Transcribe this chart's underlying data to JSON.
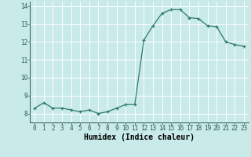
{
  "x": [
    0,
    1,
    2,
    3,
    4,
    5,
    6,
    7,
    8,
    9,
    10,
    11,
    12,
    13,
    14,
    15,
    16,
    17,
    18,
    19,
    20,
    21,
    22,
    23
  ],
  "y": [
    8.3,
    8.6,
    8.3,
    8.3,
    8.2,
    8.1,
    8.2,
    8.0,
    8.1,
    8.3,
    8.5,
    8.5,
    12.1,
    12.9,
    13.6,
    13.8,
    13.8,
    13.35,
    13.3,
    12.9,
    12.85,
    12.0,
    11.85,
    11.75
  ],
  "xlabel": "Humidex (Indice chaleur)",
  "ylim": [
    7.5,
    14.25
  ],
  "xlim": [
    -0.5,
    23.5
  ],
  "yticks": [
    8,
    9,
    10,
    11,
    12,
    13,
    14
  ],
  "xticks": [
    0,
    1,
    2,
    3,
    4,
    5,
    6,
    7,
    8,
    9,
    10,
    11,
    12,
    13,
    14,
    15,
    16,
    17,
    18,
    19,
    20,
    21,
    22,
    23
  ],
  "xtick_labels": [
    "0",
    "1",
    "2",
    "3",
    "4",
    "5",
    "6",
    "7",
    "8",
    "9",
    "10",
    "11",
    "12",
    "13",
    "14",
    "15",
    "16",
    "17",
    "18",
    "19",
    "20",
    "21",
    "22",
    "23"
  ],
  "line_color": "#2d7a6e",
  "marker": "+",
  "bg_color": "#c8eae8",
  "grid_color": "#ffffff",
  "xlabel_fontsize": 7,
  "tick_fontsize": 5.5
}
